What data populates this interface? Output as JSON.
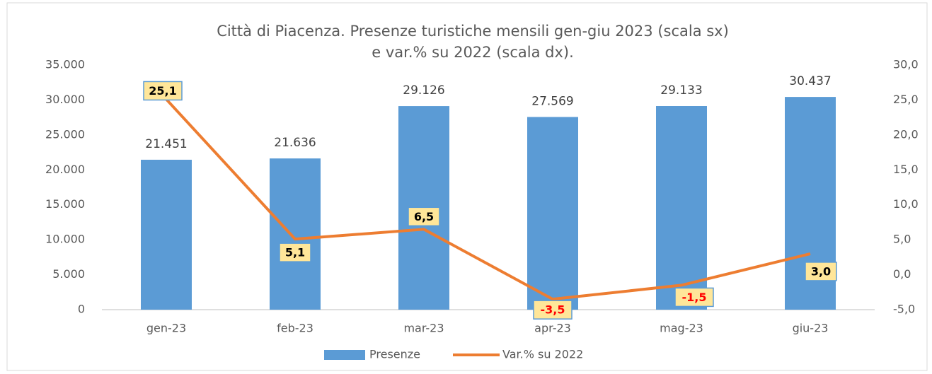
{
  "chart_data": {
    "type": "bar+line",
    "title": [
      "Città di Piacenza. Presenze turistiche mensili gen-giu 2023 (scala sx)",
      "e var.% su 2022 (scala dx)."
    ],
    "categories": [
      "gen-23",
      "feb-23",
      "mar-23",
      "apr-23",
      "mag-23",
      "giu-23"
    ],
    "series": [
      {
        "name": "Presenze",
        "type": "bar",
        "color": "#5b9bd5",
        "values": [
          21451,
          21636,
          29126,
          27569,
          29133,
          30437
        ],
        "value_labels": [
          "21.451",
          "21.636",
          "29.126",
          "27.569",
          "29.133",
          "30.437"
        ]
      },
      {
        "name": "Var.% su 2022",
        "type": "line",
        "axis": "y2",
        "color": "#ed7d31",
        "values": [
          25.1,
          5.1,
          6.5,
          -3.5,
          -1.5,
          3.0
        ],
        "value_labels": [
          "25,1",
          "5,1",
          "6,5",
          "-3,5",
          "-1,5",
          "3,0"
        ]
      }
    ],
    "ylim": [
      0,
      35000
    ],
    "yticks": [
      0,
      {
        "value": 5000,
        "label": "5.000"
      },
      {
        "value": 10000,
        "label": "10.000"
      },
      {
        "value": 15000,
        "label": "15.000"
      },
      {
        "value": 20000,
        "label": "20.000"
      },
      {
        "value": 25000,
        "label": "25.000"
      },
      {
        "value": 30000,
        "label": "30.000"
      },
      {
        "value": 35000,
        "label": "35.000"
      }
    ],
    "y2lim": [
      -5,
      30
    ],
    "y2ticks": [
      {
        "value": -5,
        "label": "-5,0"
      },
      {
        "value": 0,
        "label": "0,0"
      },
      {
        "value": 5,
        "label": "5,0"
      },
      {
        "value": 10,
        "label": "10,0"
      },
      {
        "value": 15,
        "label": "15,0"
      },
      {
        "value": 20,
        "label": "20,0"
      },
      {
        "value": 25,
        "label": "25,0"
      },
      {
        "value": 30,
        "label": "30,0"
      }
    ],
    "legend": "bottom"
  }
}
